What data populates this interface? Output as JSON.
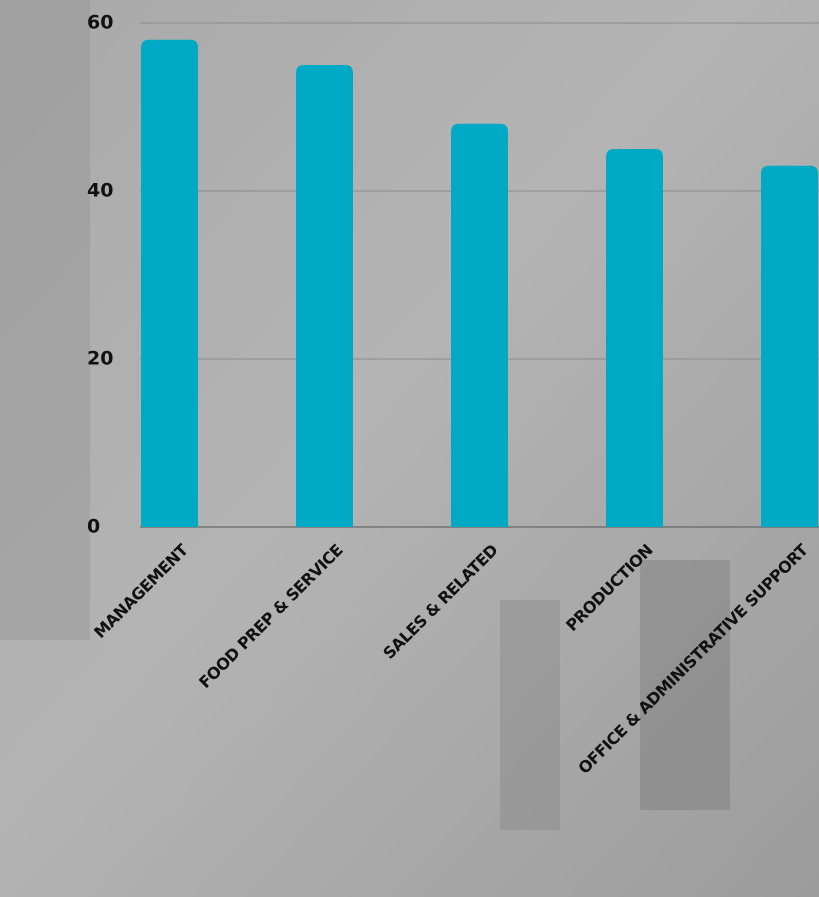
{
  "chart_data": {
    "type": "bar",
    "categories": [
      "MANAGEMENT",
      "FOOD PREP & SERVICE",
      "SALES & RELATED",
      "PRODUCTION",
      "OFFICE & ADMINISTRATIVE SUPPORT"
    ],
    "values": [
      58,
      55,
      48,
      45,
      43
    ],
    "color": "#00aac4",
    "ylim": [
      0,
      60
    ],
    "yticks": [
      0,
      20,
      40,
      60
    ],
    "grid": true
  }
}
